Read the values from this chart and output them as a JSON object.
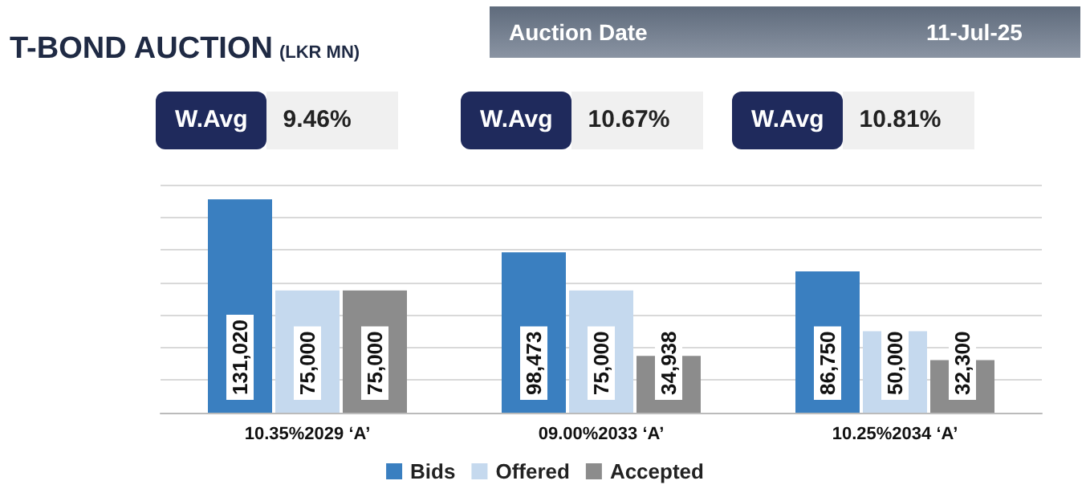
{
  "chart_data": {
    "type": "bar",
    "title": "T-BOND AUCTION",
    "subtitle": "(LKR MN)",
    "annotations": [
      "Auction Date",
      "11-Jul-25",
      "W.Avg",
      "9.46%",
      "W.Avg",
      "10.67%",
      "W.Avg",
      "10.81%"
    ],
    "categories": [
      "10.35%2029 ‘A’",
      "09.00%2033 ‘A’",
      "10.25%2034 ‘A’"
    ],
    "series": [
      {
        "name": "Bids",
        "color": "#3a7fc0",
        "values": [
          131020,
          98473,
          86750
        ],
        "value_labels": [
          "131,020",
          "98,473",
          "86,750"
        ]
      },
      {
        "name": "Offered",
        "color": "#c5d9ee",
        "values": [
          75000,
          75000,
          50000
        ],
        "value_labels": [
          "75,000",
          "75,000",
          "50,000"
        ]
      },
      {
        "name": "Accepted",
        "color": "#8c8c8c",
        "values": [
          75000,
          34938,
          32300
        ],
        "value_labels": [
          "75,000",
          "34,938",
          "32,300"
        ]
      }
    ],
    "grid": "y",
    "legend": "bottom"
  }
}
